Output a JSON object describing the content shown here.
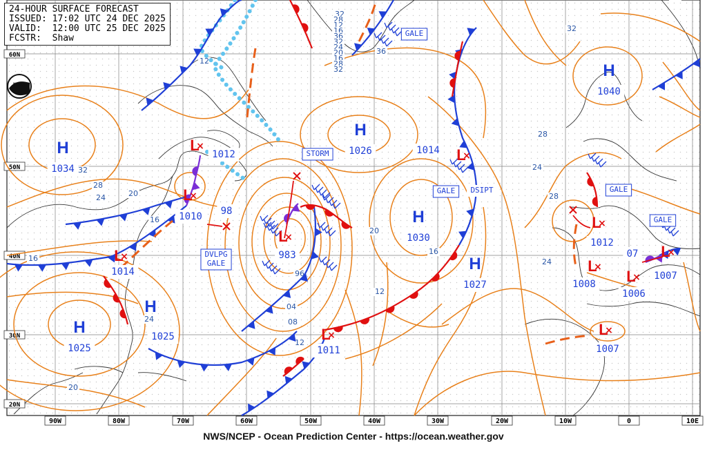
{
  "header": {
    "title": "24-HOUR SURFACE FORECAST",
    "issued": "ISSUED: 17:02 UTC 24 DEC 2025",
    "valid": "VALID:  12:00 UTC 25 DEC 2025",
    "forecaster": "FCSTR:  Shaw"
  },
  "footer": "NWS/NCEP - Ocean Prediction Center - https://ocean.weather.gov",
  "logo_text": "NOAA",
  "lat_labels": [
    "60N",
    "50N",
    "40N",
    "30N",
    "20N"
  ],
  "lon_labels": [
    "90W",
    "80W",
    "70W",
    "60W",
    "50W",
    "40W",
    "30W",
    "20W",
    "10W",
    "0",
    "10E"
  ],
  "highs": [
    {
      "pressure": "1034"
    },
    {
      "pressure": "1025"
    },
    {
      "pressure": "1025"
    },
    {
      "pressure": "1026"
    },
    {
      "pressure": "1030"
    },
    {
      "pressure": "1027"
    },
    {
      "pressure": "1040"
    }
  ],
  "lows": [
    {
      "pressure": "1010"
    },
    {
      "pressure": "1014"
    },
    {
      "pressure": "983"
    },
    {
      "pressure": "1011"
    },
    {
      "pressure": "1012"
    },
    {
      "pressure": "1008"
    },
    {
      "pressure": "1006"
    },
    {
      "pressure": "1007"
    },
    {
      "pressure": "1007"
    }
  ],
  "plain_pressure_labels": [
    "1012",
    "1014",
    "98",
    "07"
  ],
  "warnings": [
    "STORM",
    "GALE",
    "GALE",
    "GALE",
    "GALE",
    "DVLPG\nGALE"
  ],
  "dsipt": "DSIPT",
  "isobar_labels": [
    "08",
    "12",
    "32",
    "28",
    "24",
    "20",
    "16",
    "16",
    "36",
    "32",
    "28",
    "24",
    "20",
    "16",
    "12",
    "96",
    "04",
    "08",
    "12",
    "24",
    "20",
    "24",
    "28",
    "16",
    "32",
    "28",
    "12",
    "16",
    "36",
    "32",
    "24",
    "20",
    "16",
    "28",
    "32"
  ],
  "colors": {
    "isobar": "#e8801a",
    "cold_front": "#1f3fd6",
    "warm_front": "#e01010",
    "high": "#1f3fd6",
    "low": "#e01010",
    "ice": "#62c4ee",
    "grid": "#808080"
  }
}
